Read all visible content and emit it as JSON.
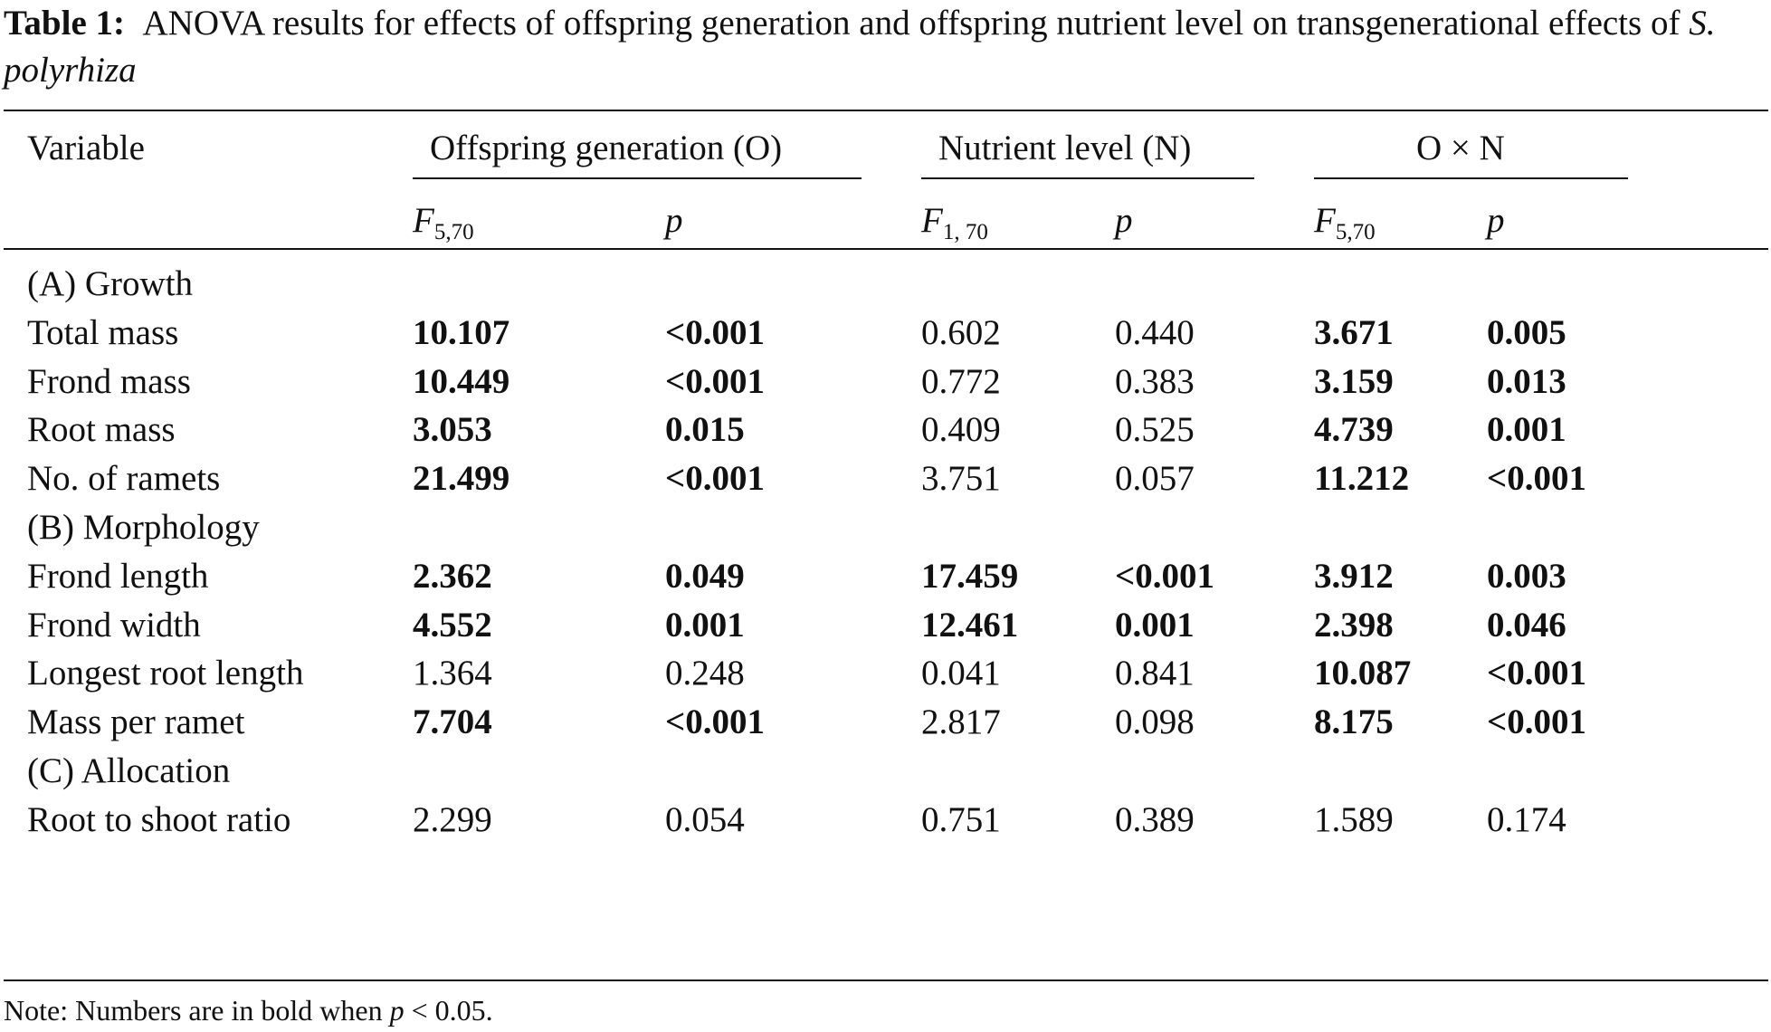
{
  "caption": {
    "label": "Table 1:",
    "text_before": "ANOVA results for effects of offspring generation and offspring nutrient level on transgenerational effects of",
    "species": "S. polyrhiza"
  },
  "headers": {
    "variable": "Variable",
    "group_o": "Offspring generation (O)",
    "group_n": "Nutrient level (N)",
    "group_on": "O × N",
    "f_symbol": "F",
    "f_o_df": "5,70",
    "f_n_df": "1, 70",
    "f_on_df": "5,70",
    "p_symbol": "p"
  },
  "rows": [
    {
      "type": "section",
      "label": "(A) Growth"
    },
    {
      "type": "data",
      "label": "Total mass",
      "values": [
        "10.107",
        "<0.001",
        "0.602",
        "0.440",
        "3.671",
        "0.005"
      ],
      "bold": [
        true,
        true,
        false,
        false,
        true,
        true
      ]
    },
    {
      "type": "data",
      "label": "Frond mass",
      "values": [
        "10.449",
        "<0.001",
        "0.772",
        "0.383",
        "3.159",
        "0.013"
      ],
      "bold": [
        true,
        true,
        false,
        false,
        true,
        true
      ]
    },
    {
      "type": "data",
      "label": "Root mass",
      "values": [
        "3.053",
        "0.015",
        "0.409",
        "0.525",
        "4.739",
        "0.001"
      ],
      "bold": [
        true,
        true,
        false,
        false,
        true,
        true
      ]
    },
    {
      "type": "data",
      "label": "No. of ramets",
      "values": [
        "21.499",
        "<0.001",
        "3.751",
        "0.057",
        "11.212",
        "<0.001"
      ],
      "bold": [
        true,
        true,
        false,
        false,
        true,
        true
      ]
    },
    {
      "type": "section",
      "label": "(B) Morphology"
    },
    {
      "type": "data",
      "label": "Frond length",
      "values": [
        "2.362",
        "0.049",
        "17.459",
        "<0.001",
        "3.912",
        "0.003"
      ],
      "bold": [
        true,
        true,
        true,
        true,
        true,
        true
      ]
    },
    {
      "type": "data",
      "label": "Frond width",
      "values": [
        "4.552",
        "0.001",
        "12.461",
        "0.001",
        "2.398",
        "0.046"
      ],
      "bold": [
        true,
        true,
        true,
        true,
        true,
        true
      ]
    },
    {
      "type": "data",
      "label": "Longest root length",
      "values": [
        "1.364",
        "0.248",
        "0.041",
        "0.841",
        "10.087",
        "<0.001"
      ],
      "bold": [
        false,
        false,
        false,
        false,
        true,
        true
      ]
    },
    {
      "type": "data",
      "label": "Mass per ramet",
      "values": [
        "7.704",
        "<0.001",
        "2.817",
        "0.098",
        "8.175",
        "<0.001"
      ],
      "bold": [
        true,
        true,
        false,
        false,
        true,
        true
      ]
    },
    {
      "type": "section",
      "label": "(C) Allocation"
    },
    {
      "type": "data",
      "label": "Root to shoot ratio",
      "values": [
        "2.299",
        "0.054",
        "0.751",
        "0.389",
        "1.589",
        "0.174"
      ],
      "bold": [
        false,
        false,
        false,
        false,
        false,
        false
      ]
    }
  ],
  "note": {
    "prefix": "Note: Numbers are in bold when",
    "p_symbol": "p",
    "suffix": "< 0.05."
  }
}
